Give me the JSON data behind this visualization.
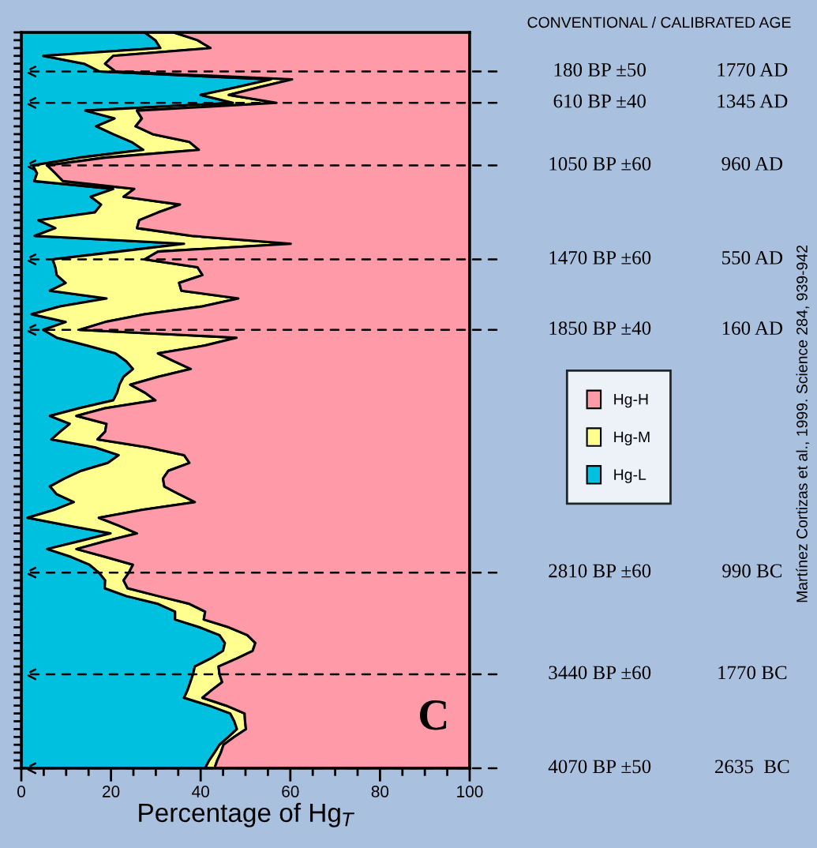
{
  "chart_data": {
    "type": "area",
    "orientation": "horizontal",
    "stacked": true,
    "xlabel": "Percentage of Hg$_{T}$",
    "categories": [
      null,
      null,
      null,
      null,
      null,
      "180 BP ±50",
      null,
      null,
      null,
      "610 BP ±40",
      null,
      null,
      null,
      null,
      null,
      null,
      null,
      "1050 BP ±60",
      null,
      null,
      null,
      null,
      null,
      null,
      null,
      null,
      null,
      null,
      null,
      "1470 BP ±60",
      null,
      null,
      null,
      null,
      null,
      null,
      null,
      null,
      "1850 BP ±40",
      null,
      null,
      null,
      null,
      null,
      null,
      null,
      null,
      null,
      null,
      null,
      null,
      null,
      null,
      null,
      null,
      null,
      null,
      null,
      null,
      null,
      null,
      null,
      null,
      null,
      null,
      null,
      null,
      null,
      null,
      "2810 BP ±60",
      null,
      null,
      null,
      null,
      null,
      null,
      null,
      null,
      null,
      null,
      null,
      null,
      "3440 BP ±60",
      null,
      null,
      null,
      null,
      null,
      null,
      null,
      null,
      null,
      null,
      null,
      "4070 BP ±50"
    ],
    "series": [
      {
        "name": "Hg-L",
        "color": "#00c0e0",
        "values": [
          27.5,
          29.9,
          31,
          4.9,
          14,
          17.5,
          55.7,
          48,
          40,
          47.2,
          14.3,
          20.8,
          16.7,
          20.5,
          24.6,
          27.2,
          12.9,
          2.6,
          3.5,
          2.9,
          20.5,
          15.5,
          17.8,
          16.4,
          3.8,
          7.6,
          3,
          36.3,
          21.7,
          7,
          7.6,
          7.9,
          9.9,
          6.4,
          19,
          8.7,
          2.3,
          9.9,
          4.9,
          7.9,
          14.6,
          21,
          23.4,
          24.9,
          22.8,
          21.9,
          21.4,
          20.5,
          12.9,
          6.4,
          10.8,
          8.7,
          6.7,
          16.4,
          21.7,
          19.3,
          13.4,
          9.6,
          6.4,
          7.9,
          11.7,
          7.3,
          1.4,
          10.5,
          19.9,
          12.9,
          5.8,
          11.1,
          15.2,
          17.3,
          18.7,
          18.6,
          23.4,
          30.5,
          34.3,
          34.3,
          39.8,
          44.2,
          45.4,
          45,
          42.2,
          38.7,
          38.3,
          37.7,
          37.1,
          36.3,
          41.9,
          46.6,
          47.5,
          48.1,
          46.2,
          44.2,
          43.1,
          41.9,
          41
        ]
      },
      {
        "name": "Hg-M",
        "color": "#ffff90",
        "values": [
          6.5,
          9.4,
          11.2,
          15.6,
          4.7,
          3.5,
          4.7,
          5,
          6.3,
          9.7,
          11.5,
          6.1,
          8.8,
          8.8,
          12.9,
          12.4,
          5.8,
          3.2,
          4.1,
          6.4,
          4.7,
          7.3,
          17.6,
          14.1,
          22.5,
          18.2,
          35,
          23.8,
          8.8,
          20.5,
          31.7,
          32.5,
          25.3,
          29.3,
          29.4,
          31.7,
          25.2,
          8.8,
          8.1,
          40.1,
          26.4,
          9.5,
          10.6,
          12.9,
          7.7,
          2.4,
          6.1,
          9.4,
          5.8,
          5.9,
          8.2,
          10,
          10.3,
          11.7,
          14.6,
          18.2,
          19.4,
          22,
          25.5,
          27.3,
          27,
          19.6,
          15.9,
          11.2,
          5.9,
          5.8,
          6.5,
          7.6,
          9.7,
          6.7,
          4.1,
          5.1,
          7.1,
          7,
          6.7,
          6.4,
          6.5,
          6.2,
          6.8,
          6.6,
          5.8,
          5.3,
          5.9,
          7.1,
          5.4,
          4.1,
          3.8,
          3.2,
          2.4,
          2,
          1.3,
          0.9,
          1.4,
          1.8,
          2.1
        ]
      },
      {
        "name": "Hg-H",
        "color": "#ff9aa8",
        "values": [
          66,
          60.7,
          57.8,
          79.5,
          81.3,
          79,
          39.6,
          47,
          53.7,
          43.1,
          74.2,
          73.1,
          74.5,
          70.7,
          62.5,
          60.4,
          81.3,
          94.2,
          92.4,
          90.7,
          74.8,
          77.2,
          64.6,
          69.5,
          73.7,
          74.2,
          62,
          39.9,
          69.5,
          72.5,
          60.7,
          59.6,
          64.8,
          64.3,
          51.6,
          59.6,
          72.5,
          81.3,
          87,
          52,
          59,
          69.5,
          66,
          62.2,
          69.5,
          75.7,
          72.5,
          70.1,
          81.3,
          87.7,
          81,
          81.3,
          83,
          71.9,
          63.7,
          62.5,
          67.2,
          68.4,
          68.1,
          64.8,
          61.3,
          73.1,
          82.7,
          78.3,
          74.2,
          81.3,
          87.7,
          81.3,
          75.1,
          76,
          77.2,
          76.3,
          69.5,
          62.5,
          59,
          59.3,
          53.7,
          49.6,
          47.8,
          48.4,
          52,
          56,
          55.8,
          55.2,
          57.5,
          59.6,
          54.3,
          50.2,
          50.1,
          49.9,
          52.5,
          54.9,
          55.5,
          56.3,
          56.9
        ]
      }
    ],
    "xlim": [
      0,
      100
    ],
    "xticks": [
      0,
      {
        "value": 5,
        "label": null
      },
      {
        "value": 10,
        "label": null
      },
      {
        "value": 15,
        "label": null
      },
      20,
      {
        "value": 25,
        "label": null
      },
      {
        "value": 30,
        "label": null
      },
      {
        "value": 35,
        "label": null
      },
      40,
      {
        "value": 45,
        "label": null
      },
      {
        "value": 50,
        "label": null
      },
      {
        "value": 55,
        "label": null
      },
      60,
      {
        "value": 65,
        "label": null
      },
      {
        "value": 70,
        "label": null
      },
      {
        "value": 75,
        "label": null
      },
      80,
      {
        "value": 85,
        "label": null
      },
      {
        "value": 90,
        "label": null
      },
      {
        "value": 95,
        "label": null
      },
      100
    ],
    "annotations": [
      "CONVENTIONAL / CALIBRATED AGE",
      "C",
      "Martínez Cortizas et al., 1999. Science 284, 939-942",
      "1770 AD",
      "1345 AD",
      "960 AD",
      "550 AD",
      "160 AD",
      "990 BC",
      "1770 BC",
      "2635  BC"
    ],
    "legend": "right",
    "grid": false
  }
}
